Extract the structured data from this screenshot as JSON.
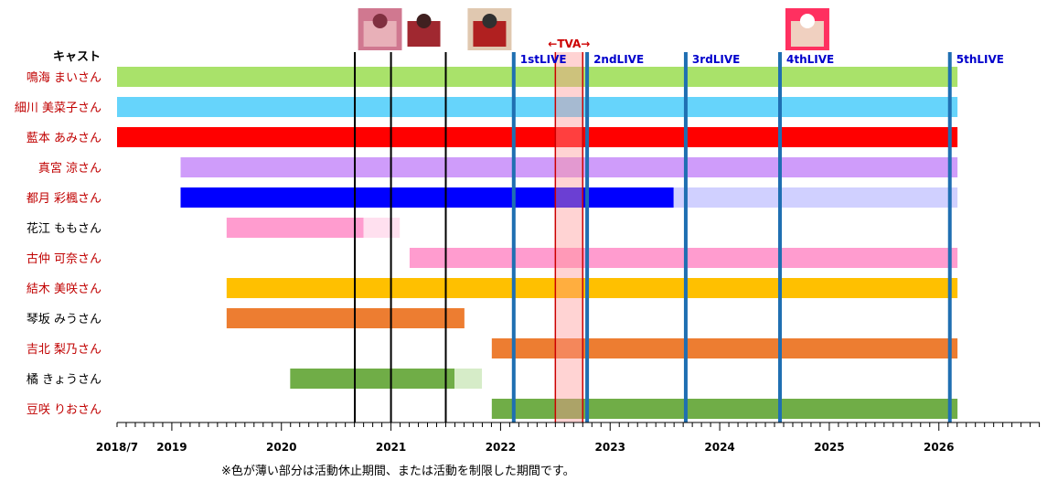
{
  "chart_data": {
    "type": "timeline",
    "header": "キャスト",
    "tick_labels": [
      {
        "label": "2018/7",
        "year": 2018.5
      },
      {
        "label": "2019",
        "year": 2019
      },
      {
        "label": "2020",
        "year": 2020
      },
      {
        "label": "2021",
        "year": 2021
      },
      {
        "label": "2022",
        "year": 2022
      },
      {
        "label": "2023",
        "year": 2023
      },
      {
        "label": "2024",
        "year": 2024
      },
      {
        "label": "2025",
        "year": 2025
      },
      {
        "label": "2026",
        "year": 2026
      }
    ],
    "xlim": [
      2018.5,
      2026.92
    ],
    "cast": [
      {
        "name": "鳴海 まいさん",
        "name_color": "#c00000",
        "color": "#a9e26a",
        "segments": [
          {
            "start": 2018.5,
            "end": 2026.17,
            "faded": false
          }
        ]
      },
      {
        "name": "細川 美菜子さん",
        "name_color": "#c00000",
        "color": "#66d4fb",
        "segments": [
          {
            "start": 2018.5,
            "end": 2026.17,
            "faded": false
          }
        ]
      },
      {
        "name": "藍本 あみさん",
        "name_color": "#c00000",
        "color": "#ff0000",
        "segments": [
          {
            "start": 2018.5,
            "end": 2026.17,
            "faded": false
          }
        ]
      },
      {
        "name": "真宮 涼さん",
        "name_color": "#c00000",
        "color": "#cf9cfa",
        "segments": [
          {
            "start": 2019.08,
            "end": 2026.17,
            "faded": false
          }
        ]
      },
      {
        "name": "都月 彩楓さん",
        "name_color": "#c00000",
        "color": "#0000ff",
        "segments": [
          {
            "start": 2019.08,
            "end": 2023.58,
            "faded": false
          },
          {
            "start": 2023.58,
            "end": 2026.17,
            "faded": true,
            "color": "#d0d0ff"
          }
        ]
      },
      {
        "name": "花江 ももさん",
        "name_color": "#000000",
        "color": "#ff9ccf",
        "segments": [
          {
            "start": 2019.5,
            "end": 2020.75,
            "faded": false
          },
          {
            "start": 2020.75,
            "end": 2021.08,
            "faded": true,
            "color": "#ffe0ef"
          }
        ]
      },
      {
        "name": "古仲 可奈さん",
        "name_color": "#c00000",
        "color": "#ff9ccf",
        "segments": [
          {
            "start": 2021.17,
            "end": 2026.17,
            "faded": false
          }
        ]
      },
      {
        "name": "結木 美咲さん",
        "name_color": "#c00000",
        "color": "#ffc000",
        "segments": [
          {
            "start": 2019.5,
            "end": 2026.17,
            "faded": false
          }
        ]
      },
      {
        "name": "琴坂 みうさん",
        "name_color": "#000000",
        "color": "#ed7d31",
        "segments": [
          {
            "start": 2019.5,
            "end": 2021.67,
            "faded": false
          }
        ]
      },
      {
        "name": "吉北 梨乃さん",
        "name_color": "#c00000",
        "color": "#ed7d31",
        "segments": [
          {
            "start": 2021.92,
            "end": 2026.17,
            "faded": false
          }
        ]
      },
      {
        "name": "橘 きょうさん",
        "name_color": "#000000",
        "color": "#70ad47",
        "segments": [
          {
            "start": 2020.08,
            "end": 2021.58,
            "faded": false
          },
          {
            "start": 2021.58,
            "end": 2021.83,
            "faded": true,
            "color": "#d6ecc8"
          }
        ]
      },
      {
        "name": "豆咲 りおさん",
        "name_color": "#c00000",
        "color": "#70ad47",
        "segments": [
          {
            "start": 2021.92,
            "end": 2026.17,
            "faded": false
          }
        ]
      }
    ],
    "release_lines": [
      2020.67,
      2021.0,
      2021.5
    ],
    "lives": [
      {
        "label": "1stLIVE",
        "year": 2022.12
      },
      {
        "label": "2ndLIVE",
        "year": 2022.79
      },
      {
        "label": "3rdLIVE",
        "year": 2023.69
      },
      {
        "label": "4thLIVE",
        "year": 2024.55
      },
      {
        "label": "5thLIVE",
        "year": 2026.1
      }
    ],
    "live_label_color": "#0000cc",
    "live_line_color": "#1f6fb2",
    "tva": {
      "label": "←TVA→",
      "start": 2022.5,
      "end": 2022.75,
      "color": "#cc0000"
    },
    "note": "※色が薄い部分は活動休止期間、または活動を制限した期間です。",
    "thumbnails": [
      {
        "name": "album-thumbnail-1",
        "year": 2020.9,
        "colors": [
          "#d07890",
          "#e8b0b8",
          "#803040"
        ]
      },
      {
        "name": "album-thumbnail-2",
        "year": 2021.3,
        "colors": [
          "#ffffff",
          "#a02830",
          "#402020"
        ]
      },
      {
        "name": "album-thumbnail-3",
        "year": 2021.9,
        "colors": [
          "#e0c8b0",
          "#b02020",
          "#303030"
        ]
      },
      {
        "name": "album-thumbnail-4",
        "year": 2024.8,
        "colors": [
          "#ff3060",
          "#f0d0c0",
          "#ffffff"
        ]
      }
    ]
  }
}
